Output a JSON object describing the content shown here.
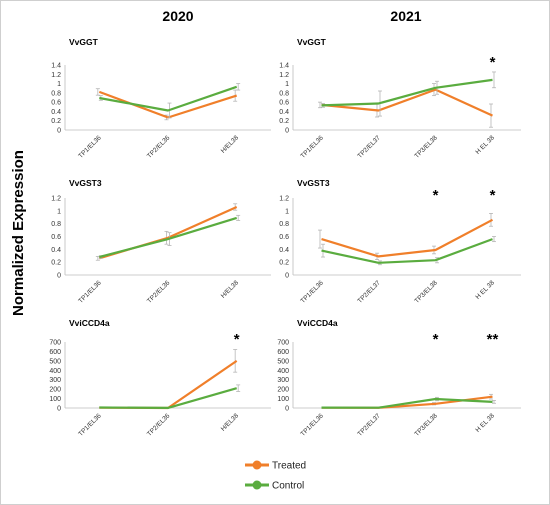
{
  "column_titles": [
    "2020",
    "2021"
  ],
  "y_axis_title": "Normalized Expression",
  "legend": [
    {
      "label": "Treated",
      "color": "#f07f2a"
    },
    {
      "label": "Control",
      "color": "#5aac3f"
    }
  ],
  "chart_data": [
    {
      "type": "line",
      "title": "VvGGT",
      "year": "2020",
      "categories": [
        "TP1/EL36",
        "TP2/EL36",
        "H/EL38"
      ],
      "ylim": [
        0,
        1.4
      ],
      "yticks": [
        "0",
        "0.2",
        "0.4",
        "0.6",
        "0.8",
        "1",
        "1.2",
        "1.4"
      ],
      "series": [
        {
          "name": "Treated",
          "values": [
            0.82,
            0.27,
            0.74
          ],
          "errors": [
            0.07,
            0.05,
            0.12
          ]
        },
        {
          "name": "Control",
          "values": [
            0.69,
            0.42,
            0.93
          ],
          "errors": [
            0.05,
            0.16,
            0.07
          ]
        }
      ],
      "significance": [
        "",
        "",
        ""
      ]
    },
    {
      "type": "line",
      "title": "VvGGT",
      "year": "2021",
      "categories": [
        "TP1/EL36",
        "TP2/EL37",
        "TP3/EL38",
        "H EL 38"
      ],
      "ylim": [
        0,
        1.4
      ],
      "yticks": [
        "0",
        "0.2",
        "0.4",
        "0.6",
        "0.8",
        "1",
        "1.2",
        "1.4"
      ],
      "series": [
        {
          "name": "Treated",
          "values": [
            0.54,
            0.42,
            0.87,
            0.31
          ],
          "errors": [
            0.06,
            0.14,
            0.13,
            0.25
          ]
        },
        {
          "name": "Control",
          "values": [
            0.53,
            0.57,
            0.91,
            1.08
          ],
          "errors": [
            0.04,
            0.27,
            0.14,
            0.17
          ]
        }
      ],
      "significance": [
        "",
        "",
        "",
        "*"
      ]
    },
    {
      "type": "line",
      "title": "VvGST3",
      "year": "2020",
      "categories": [
        "TP1/EL36",
        "TP2/EL36",
        "H/EL38"
      ],
      "ylim": [
        0,
        1.2
      ],
      "yticks": [
        "0",
        "0.2",
        "0.4",
        "0.6",
        "0.8",
        "1",
        "1.2"
      ],
      "series": [
        {
          "name": "Treated",
          "values": [
            0.26,
            0.58,
            1.06
          ],
          "errors": [
            0.03,
            0.1,
            0.05
          ]
        },
        {
          "name": "Control",
          "values": [
            0.28,
            0.56,
            0.89
          ],
          "errors": [
            0.02,
            0.1,
            0.04
          ]
        }
      ],
      "significance": [
        "",
        "",
        ""
      ]
    },
    {
      "type": "line",
      "title": "VvGST3",
      "year": "2021",
      "categories": [
        "TP1/EL36",
        "TP2/EL37",
        "TP3/EL38",
        "H EL 38"
      ],
      "ylim": [
        0,
        1.2
      ],
      "yticks": [
        "0",
        "0.2",
        "0.4",
        "0.6",
        "0.8",
        "1",
        "1.2"
      ],
      "series": [
        {
          "name": "Treated",
          "values": [
            0.56,
            0.29,
            0.39,
            0.86
          ],
          "errors": [
            0.14,
            0.05,
            0.06,
            0.1
          ]
        },
        {
          "name": "Control",
          "values": [
            0.38,
            0.19,
            0.23,
            0.56
          ],
          "errors": [
            0.1,
            0.03,
            0.04,
            0.04
          ]
        }
      ],
      "significance": [
        "",
        "",
        "*",
        "*"
      ]
    },
    {
      "type": "line",
      "title": "VviCCD4a",
      "year": "2020",
      "categories": [
        "TP1/EL36",
        "TP2/EL36",
        "H/EL38"
      ],
      "ylim": [
        0,
        700
      ],
      "yticks": [
        "0",
        "100",
        "200",
        "300",
        "400",
        "500",
        "600",
        "700"
      ],
      "series": [
        {
          "name": "Treated",
          "values": [
            3,
            0,
            500
          ],
          "errors": [
            0,
            0,
            120
          ]
        },
        {
          "name": "Control",
          "values": [
            5,
            1,
            210
          ],
          "errors": [
            0,
            0,
            35
          ]
        }
      ],
      "significance": [
        "",
        "",
        "*"
      ]
    },
    {
      "type": "line",
      "title": "VviCCD4a",
      "year": "2021",
      "categories": [
        "TP1/EL36",
        "TP2/EL37",
        "TP3/EL38",
        "H EL 38"
      ],
      "ylim": [
        0,
        700
      ],
      "yticks": [
        "0",
        "100",
        "200",
        "300",
        "400",
        "500",
        "600",
        "700"
      ],
      "series": [
        {
          "name": "Treated",
          "values": [
            3,
            2,
            45,
            120
          ],
          "errors": [
            0,
            0,
            12,
            25
          ]
        },
        {
          "name": "Control",
          "values": [
            4,
            3,
            95,
            65
          ],
          "errors": [
            0,
            0,
            18,
            15
          ]
        }
      ],
      "significance": [
        "",
        "",
        "*",
        "**"
      ]
    }
  ]
}
